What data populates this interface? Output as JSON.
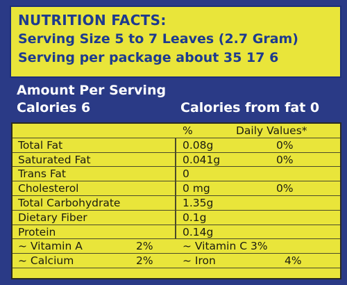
{
  "header": {
    "title": "NUTRITION FACTS:",
    "serving_size": "Serving Size 5 to 7 Leaves (2.7 Gram)",
    "servings_per_package": "Serving per package about  35  17   6"
  },
  "band": {
    "amount_per_serving": "Amount Per Serving",
    "calories": "Calories 6",
    "calories_from_fat": "Calories from fat 0"
  },
  "table": {
    "header": {
      "percent": "%",
      "daily_values": "Daily Values*"
    },
    "rows": [
      {
        "nutrient": "Total Fat",
        "amount": "0.08g",
        "dv": "0%"
      },
      {
        "nutrient": "Saturated Fat",
        "amount": "0.041g",
        "dv": "0%"
      },
      {
        "nutrient": "Trans Fat",
        "amount": "0",
        "dv": ""
      },
      {
        "nutrient": "Cholesterol",
        "amount": "0 mg",
        "dv": "0%"
      },
      {
        "nutrient": "Total Carbohydrate",
        "amount": "1.35g",
        "dv": ""
      },
      {
        "nutrient": "Dietary Fiber",
        "amount": "0.1g",
        "dv": ""
      },
      {
        "nutrient": "Protein",
        "amount": "0.14g",
        "dv": ""
      }
    ],
    "vitamins": [
      {
        "left_name": "~ Vitamin A",
        "left_value": "2%",
        "right_name": "~ Vitamin C 3%",
        "right_value": ""
      },
      {
        "left_name": "~ Calcium",
        "left_value": "2%",
        "right_name": "~ Iron",
        "right_value": "4%"
      }
    ]
  }
}
